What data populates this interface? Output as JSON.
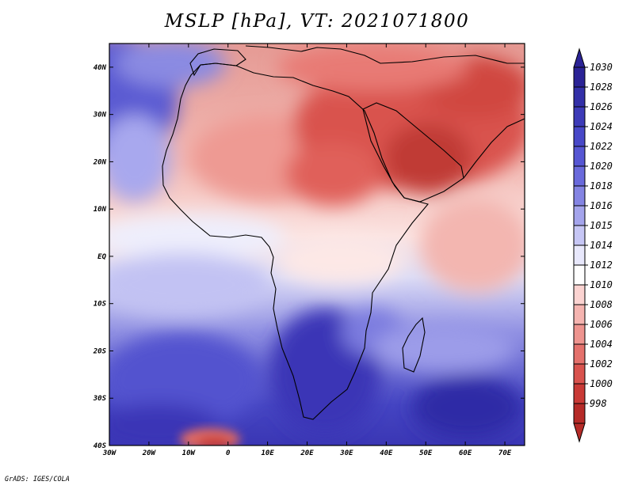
{
  "title": "MSLP [hPa], VT: 2021071800",
  "footer": "GrADS: IGES/COLA",
  "map": {
    "lon_range": [
      -30,
      75
    ],
    "lat_range": [
      -40,
      45
    ],
    "x_ticks": [
      {
        "lon": -30,
        "label": "30W"
      },
      {
        "lon": -20,
        "label": "20W"
      },
      {
        "lon": -10,
        "label": "10W"
      },
      {
        "lon": 0,
        "label": "0"
      },
      {
        "lon": 10,
        "label": "10E"
      },
      {
        "lon": 20,
        "label": "20E"
      },
      {
        "lon": 30,
        "label": "30E"
      },
      {
        "lon": 40,
        "label": "40E"
      },
      {
        "lon": 50,
        "label": "50E"
      },
      {
        "lon": 60,
        "label": "60E"
      },
      {
        "lon": 70,
        "label": "70E"
      }
    ],
    "y_ticks": [
      {
        "lat": 40,
        "label": "40N"
      },
      {
        "lat": 30,
        "label": "30N"
      },
      {
        "lat": 20,
        "label": "20N"
      },
      {
        "lat": 10,
        "label": "10N"
      },
      {
        "lat": 0,
        "label": "EQ"
      },
      {
        "lat": -10,
        "label": "10S"
      },
      {
        "lat": -20,
        "label": "20S"
      },
      {
        "lat": -30,
        "label": "30S"
      },
      {
        "lat": -40,
        "label": "40S"
      }
    ],
    "colorbar": {
      "levels": [
        "1030",
        "1028",
        "1026",
        "1024",
        "1022",
        "1020",
        "1018",
        "1016",
        "1015",
        "1014",
        "1012",
        "1010",
        "1008",
        "1006",
        "1004",
        "1002",
        "1000",
        "998"
      ],
      "colors": [
        "#2b2396",
        "#3330a8",
        "#3d3bb8",
        "#4848c8",
        "#5656d3",
        "#6a6adc",
        "#8484e3",
        "#a4a4ec",
        "#c6c6f5",
        "#e8e8fc",
        "#ffffff",
        "#fbd3d1",
        "#f5b4b0",
        "#ee948f",
        "#e4716c",
        "#d9534e",
        "#c93a36",
        "#b62b28"
      ]
    }
  }
}
